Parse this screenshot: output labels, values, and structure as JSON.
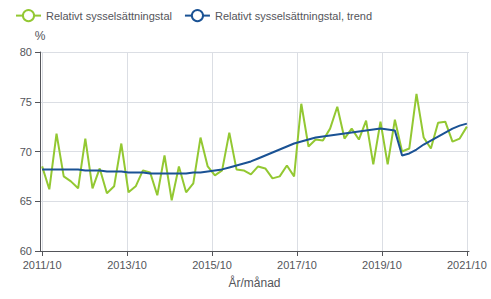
{
  "chart_data": {
    "type": "line",
    "xlabel": "År/månad",
    "ylabel": "%",
    "x": [
      2011.75,
      2011.919492,
      2012.088983,
      2012.258475,
      2012.427966,
      2012.597458,
      2012.766949,
      2012.936441,
      2013.105932,
      2013.275424,
      2013.444915,
      2013.614407,
      2013.783898,
      2013.95339,
      2014.122881,
      2014.292373,
      2014.461864,
      2014.631356,
      2014.800847,
      2014.970339,
      2015.139831,
      2015.309322,
      2015.478814,
      2015.648305,
      2015.817797,
      2015.987288,
      2016.15678,
      2016.326271,
      2016.495763,
      2016.665254,
      2016.834746,
      2017.004237,
      2017.173729,
      2017.34322,
      2017.512712,
      2017.682203,
      2017.851695,
      2018.021186,
      2018.190678,
      2018.360169,
      2018.529661,
      2018.699153,
      2018.868644,
      2019.038136,
      2019.207627,
      2019.377119,
      2019.54661,
      2019.716102,
      2019.885593,
      2020.055085,
      2020.224576,
      2020.394068,
      2020.563559,
      2020.733051,
      2020.902542,
      2021.072034,
      2021.241525,
      2021.411017,
      2021.580508,
      2021.75
    ],
    "series": [
      {
        "name": "Relativt sysselsättningstal",
        "color": "#93c832",
        "line_style": "solid",
        "values": [
          68.5,
          66.2,
          71.8,
          67.5,
          67.0,
          66.3,
          71.3,
          66.3,
          68.3,
          65.8,
          66.5,
          70.8,
          65.9,
          66.5,
          68.1,
          67.9,
          65.6,
          69.6,
          65.1,
          68.5,
          65.9,
          66.8,
          71.4,
          68.5,
          67.6,
          68.1,
          71.9,
          68.2,
          68.1,
          67.7,
          68.5,
          68.3,
          67.3,
          67.5,
          68.6,
          67.5,
          74.8,
          70.5,
          71.2,
          71.1,
          72.3,
          74.5,
          71.3,
          72.3,
          71.2,
          73.1,
          68.7,
          73.0,
          68.7,
          73.2,
          70.0,
          70.3,
          75.8,
          71.4,
          70.3,
          72.9,
          73.0,
          71.0,
          71.3,
          72.5
        ]
      },
      {
        "name": "Relativt sysselsättningstal, trend",
        "color": "#1a5294",
        "line_style": "solid",
        "values": [
          68.2,
          68.2,
          68.2,
          68.2,
          68.2,
          68.2,
          68.1,
          68.1,
          68.1,
          68.0,
          68.0,
          68.0,
          67.9,
          67.9,
          67.9,
          67.8,
          67.8,
          67.8,
          67.8,
          67.8,
          67.8,
          67.9,
          67.9,
          68.0,
          68.1,
          68.2,
          68.4,
          68.6,
          68.8,
          69.0,
          69.3,
          69.6,
          69.9,
          70.2,
          70.5,
          70.8,
          71.0,
          71.2,
          71.4,
          71.5,
          71.6,
          71.7,
          71.8,
          71.9,
          72.0,
          72.1,
          72.2,
          72.3,
          72.2,
          72.1,
          69.6,
          69.8,
          70.2,
          70.7,
          71.1,
          71.5,
          71.9,
          72.3,
          72.6,
          72.8
        ]
      }
    ],
    "xlim": [
      2011.7,
      2021.8
    ],
    "xticks": [
      {
        "value": 2011.75,
        "label": "2011/10"
      },
      {
        "value": 2013.75,
        "label": "2013/10"
      },
      {
        "value": 2015.75,
        "label": "2015/10"
      },
      {
        "value": 2017.75,
        "label": "2017/10"
      },
      {
        "value": 2019.75,
        "label": "2019/10"
      },
      {
        "value": 2021.75,
        "label": "2021/10"
      }
    ],
    "ylim": [
      60,
      80
    ],
    "yticks": [
      60,
      65,
      70,
      75,
      80
    ],
    "grid": true,
    "legend": "upper left"
  }
}
